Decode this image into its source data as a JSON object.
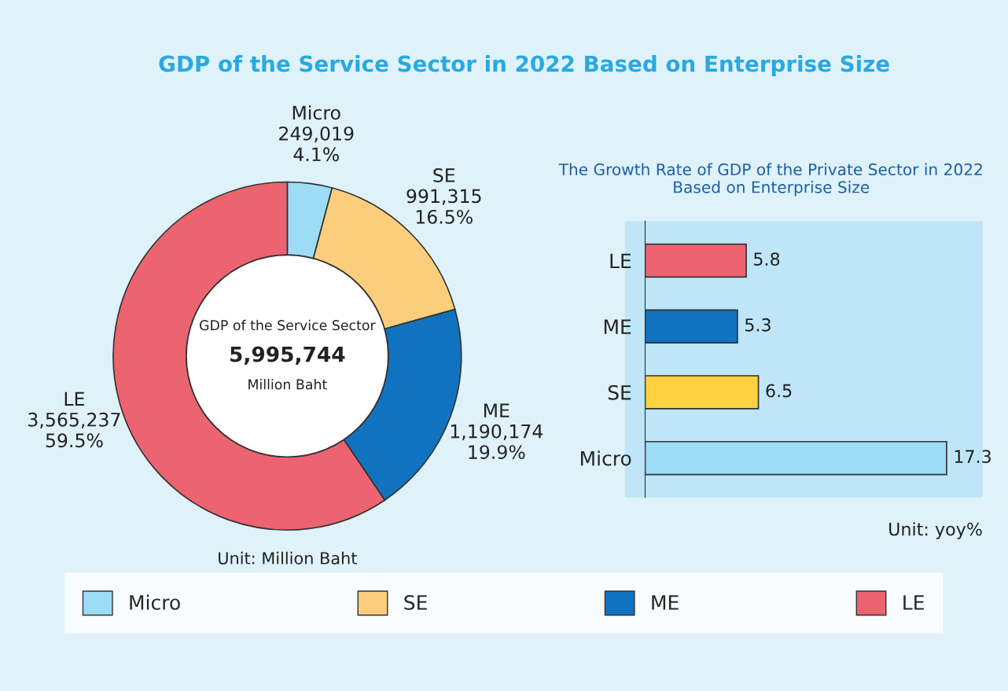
{
  "chart_data": [
    {
      "type": "donut",
      "title": "GDP of the Service Sector in 2022 Based on Enterprise Size",
      "categories": [
        "Micro",
        "SE",
        "ME",
        "LE"
      ],
      "values": [
        249019,
        991315,
        1190174,
        3565237
      ],
      "value_labels": [
        "249,019\n4.1%",
        "991,315\n16.5%",
        "1,190,174\n19.9%",
        "3,565,237\n59.5%"
      ],
      "colors": [
        "#9ddcf5",
        "#fdcd7e",
        "#1172c0",
        "#ec6470"
      ],
      "annotations": [
        "GDP of the Service Sector",
        "5,995,744",
        "Million Baht",
        "Unit: Million Baht"
      ],
      "legend": "bottom"
    },
    {
      "type": "bar",
      "orientation": "horizontal",
      "title": "The Growth Rate of GDP of the Private Sector in 2022 Based on Enterprise Size",
      "categories": [
        "LE",
        "ME",
        "SE",
        "Micro"
      ],
      "values": [
        5.8,
        5.3,
        6.5,
        17.3
      ],
      "colors": [
        "#ec6470",
        "#1172c0",
        "#fed141",
        "#9ddcf5"
      ],
      "data_labels": true,
      "tick_labels": "y",
      "annotations": [
        "Unit: yoy%"
      ]
    }
  ]
}
